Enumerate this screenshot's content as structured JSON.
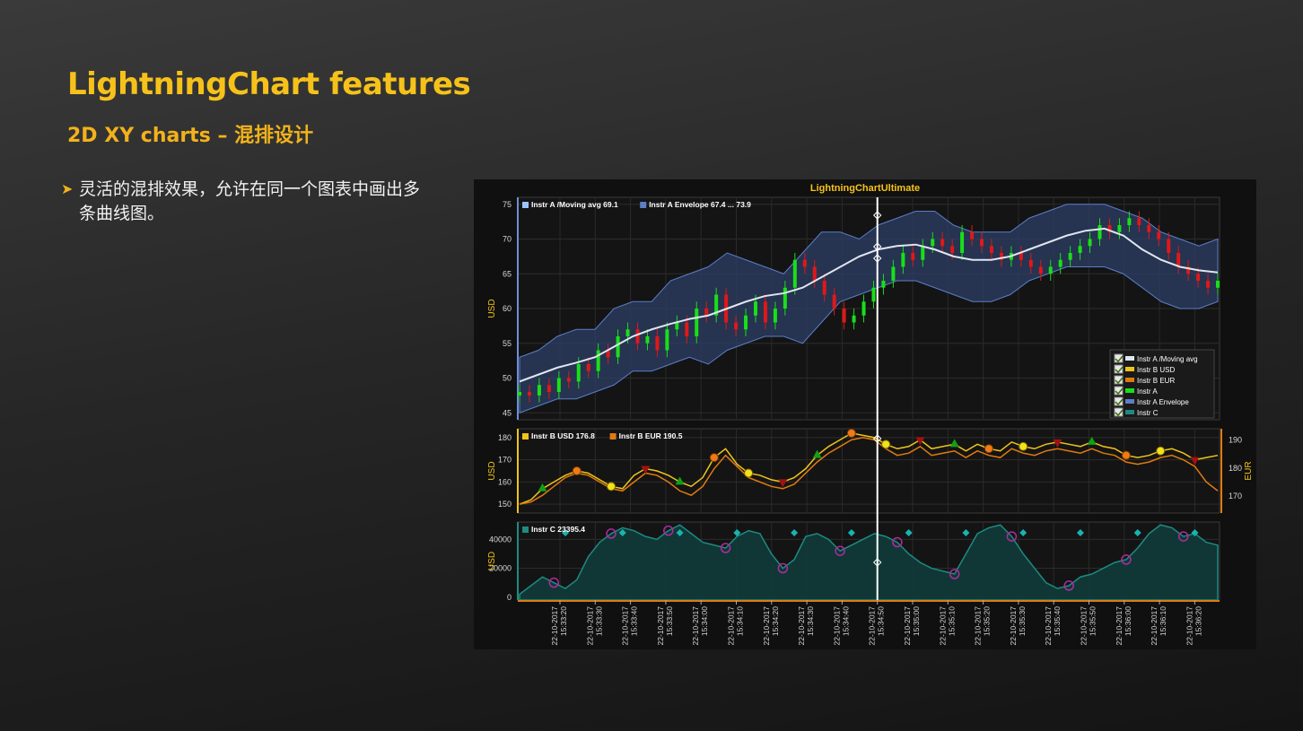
{
  "slide": {
    "title": "LightningChart features",
    "subtitle": "2D XY charts – 混排设计",
    "bullet": "灵活的混排效果，允许在同一个图表中画出多条曲线图。"
  },
  "colors": {
    "accent": "#f6c21a",
    "up_candle": "#18e018",
    "down_candle": "#e01818",
    "moving_avg": "#dfe6ef",
    "envelope": "#5b7fc8",
    "instr_b_usd": "#f0c419",
    "instr_b_eur": "#e07a10",
    "instr_c": "#1e8a82",
    "cursor": "#ffffff"
  },
  "chart_data": {
    "title": "LightningChartUltimate",
    "cursor_time": "15:34:50",
    "x_ticks": [
      "15:33:20",
      "15:33:30",
      "15:33:40",
      "15:33:50",
      "15:34:00",
      "15:34:10",
      "15:34:20",
      "15:34:30",
      "15:34:40",
      "15:34:50",
      "15:35:00",
      "15:35:10",
      "15:35:20",
      "15:35:30",
      "15:35:40",
      "15:35:50",
      "15:36:00",
      "15:36:10",
      "15:36:20"
    ],
    "x_date": "22-10-2017",
    "panels": [
      {
        "type": "line",
        "ylabel": "USD",
        "ylim": [
          44,
          76
        ],
        "y_ticks": [
          45,
          50,
          55,
          60,
          65,
          70,
          75
        ],
        "header": [
          {
            "name": "Instr A /Moving avg 69.1",
            "color": "#9ec4ff"
          },
          {
            "name": "Instr A Envelope 67.4 ... 73.9",
            "color": "#5b7fc8"
          }
        ],
        "series": [
          {
            "name": "Instr A",
            "type": "candlestick",
            "values": [
              48,
              47.5,
              49,
              48,
              50,
              49.5,
              52,
              51,
              54,
              53,
              56,
              57,
              55,
              56,
              54,
              57,
              58,
              56,
              60,
              59,
              62,
              58,
              57,
              59,
              61,
              58,
              60,
              63,
              67,
              66,
              64,
              62,
              60,
              58,
              59,
              61,
              63,
              64,
              66,
              68,
              67,
              69,
              70,
              69,
              68,
              71,
              70,
              69,
              68,
              67,
              68,
              67,
              66,
              65,
              66,
              67,
              68,
              69,
              70,
              72,
              71,
              72,
              73,
              72,
              71,
              70,
              68,
              66,
              65,
              64,
              63,
              64
            ]
          },
          {
            "name": "Instr A /Moving avg",
            "type": "line",
            "values": [
              49.5,
              50.5,
              51.5,
              52.2,
              53,
              54.5,
              56,
              57,
              57.8,
              58.5,
              59,
              60,
              61,
              61.8,
              62.2,
              63,
              64.5,
              66,
              67.5,
              68.5,
              69,
              69.2,
              68.5,
              67.5,
              67,
              67,
              67.5,
              68.5,
              69.5,
              70.5,
              71.2,
              71.5,
              70.5,
              68.5,
              67,
              66,
              65.5,
              65.2
            ]
          },
          {
            "name": "Instr A Envelope",
            "type": "area",
            "upper": [
              53,
              54,
              56,
              57,
              57,
              60,
              61,
              61,
              64,
              65,
              66,
              68,
              67,
              66,
              65,
              68,
              71,
              71,
              70,
              72,
              73,
              74,
              74,
              72,
              71,
              71,
              71,
              73,
              74,
              75,
              75,
              75,
              74,
              73,
              71,
              70,
              69,
              70
            ],
            "lower": [
              45,
              46,
              47,
              47,
              48,
              49,
              51,
              51,
              52,
              53,
              52,
              54,
              55,
              56,
              56,
              55,
              58,
              61,
              62,
              63,
              64,
              64,
              63,
              62,
              61,
              61,
              62,
              64,
              65,
              66,
              66,
              66,
              65,
              63,
              61,
              60,
              60,
              61
            ]
          }
        ],
        "legend": [
          "Instr A /Moving avg",
          "Instr B USD",
          "Instr B EUR",
          "Instr A",
          "Instr A Envelope",
          "Instr C"
        ],
        "legend_position": "bottom-right"
      },
      {
        "type": "line",
        "ylabel": "USD",
        "ylim": [
          146,
          184
        ],
        "y_ticks": [
          150,
          160,
          170,
          180
        ],
        "y2label": "EUR",
        "y2lim": [
          164,
          194
        ],
        "y2_ticks": [
          170,
          180,
          190
        ],
        "header": [
          {
            "name": "Instr B USD 176.8",
            "color": "#f0c419"
          },
          {
            "name": "Instr B EUR 190.5",
            "color": "#e07a10"
          }
        ],
        "series": [
          {
            "name": "Instr B USD",
            "values": [
              150,
              152,
              157,
              160,
              163,
              165,
              164,
              161,
              158,
              157,
              163,
              166,
              165,
              163,
              160,
              158,
              162,
              171,
              175,
              168,
              164,
              163,
              161,
              160,
              162,
              166,
              172,
              176,
              179,
              182,
              181,
              180,
              177,
              175,
              176,
              179,
              175,
              176,
              177,
              174,
              177,
              175,
              174,
              178,
              176,
              175,
              177,
              178,
              177,
              176,
              178,
              176,
              175,
              172,
              171,
              172,
              174,
              175,
              173,
              170,
              171,
              172
            ]
          },
          {
            "name": "Instr B EUR",
            "values": [
              150,
              151,
              154,
              158,
              162,
              164,
              163,
              160,
              157,
              156,
              160,
              164,
              163,
              160,
              156,
              154,
              158,
              166,
              172,
              167,
              162,
              160,
              158,
              157,
              159,
              164,
              169,
              173,
              176,
              179,
              180,
              179,
              175,
              172,
              173,
              176,
              172,
              173,
              174,
              171,
              174,
              172,
              171,
              175,
              173,
              172,
              174,
              175,
              174,
              173,
              175,
              173,
              172,
              169,
              168,
              169,
              171,
              172,
              170,
              167,
              160,
              156
            ]
          }
        ]
      },
      {
        "type": "area",
        "ylabel": "USD",
        "ylim": [
          -2000,
          52000
        ],
        "y_ticks": [
          0,
          20000,
          40000
        ],
        "header": [
          {
            "name": "Instr C 23395.4",
            "color": "#1e8a82"
          }
        ],
        "series": [
          {
            "name": "Instr C",
            "values": [
              2000,
              8000,
              14000,
              10000,
              6000,
              12000,
              28000,
              38000,
              44000,
              48000,
              46000,
              42000,
              40000,
              46000,
              50000,
              44000,
              38000,
              36000,
              34000,
              42000,
              46000,
              44000,
              30000,
              20000,
              26000,
              42000,
              44000,
              40000,
              32000,
              36000,
              40000,
              44000,
              42000,
              38000,
              30000,
              24000,
              20000,
              18000,
              16000,
              30000,
              44000,
              48000,
              50000,
              42000,
              30000,
              20000,
              10000,
              6000,
              8000,
              14000,
              16000,
              20000,
              24000,
              26000,
              34000,
              44000,
              50000,
              48000,
              42000,
              44000,
              38000,
              36000
            ]
          }
        ]
      }
    ]
  }
}
